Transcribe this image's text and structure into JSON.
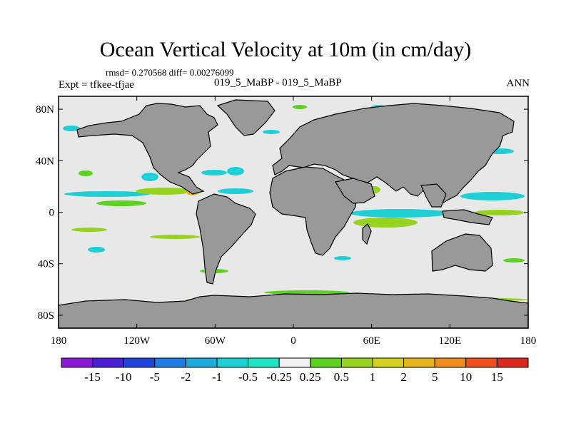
{
  "figure": {
    "title": "Ocean Vertical Velocity at 10m (in cm/day)",
    "stats": "rmsd= 0.270568 diff= 0.00276099",
    "experiment": "Expt = tfkee-tfjae",
    "runs": "019_5_MaBP - 019_5_MaBP",
    "season": "ANN"
  },
  "map": {
    "lon_range": [
      -180,
      180
    ],
    "lat_range": [
      -90,
      90
    ],
    "land_color": "#999999",
    "ocean_background_color": "#e8e8e8",
    "lat_ticks": [
      {
        "lat": 80,
        "label": "80N"
      },
      {
        "lat": 40,
        "label": "40N"
      },
      {
        "lat": 0,
        "label": "0"
      },
      {
        "lat": -40,
        "label": "40S"
      },
      {
        "lat": -80,
        "label": "80S"
      }
    ],
    "lon_ticks": [
      {
        "lon": -180,
        "label": "180"
      },
      {
        "lon": -120,
        "label": "120W"
      },
      {
        "lon": -60,
        "label": "60W"
      },
      {
        "lon": 0,
        "label": "0"
      },
      {
        "lon": 60,
        "label": "60E"
      },
      {
        "lon": 120,
        "label": "120E"
      },
      {
        "lon": 180,
        "label": "180"
      }
    ]
  },
  "colorbar": {
    "colors": [
      "#8a1ad6",
      "#4b1ed8",
      "#1e46dc",
      "#1e7ee6",
      "#1eaadc",
      "#1ecfd6",
      "#1ee6c3",
      "#f0f0f0",
      "#5ad21e",
      "#96d21e",
      "#d2d21e",
      "#e6b41e",
      "#f08c1e",
      "#f0501e",
      "#dc281e"
    ],
    "labels": [
      "-15",
      "-10",
      "-5",
      "-2",
      "-1",
      "-0.5",
      "-0.25",
      "0.25",
      "0.5",
      "1",
      "2",
      "5",
      "10",
      "15"
    ]
  }
}
